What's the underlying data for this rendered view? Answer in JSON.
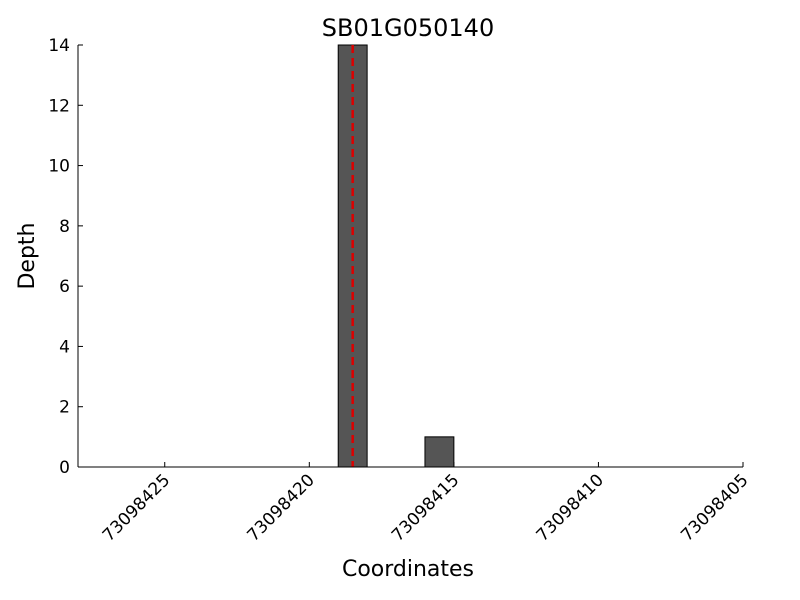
{
  "chart_data": {
    "type": "bar",
    "title": "SB01G050140",
    "xlabel": "Coordinates",
    "ylabel": "Depth",
    "x": [
      73098418.5,
      73098415.5
    ],
    "values": [
      14,
      1
    ],
    "bar_width": 1,
    "color": "#555555",
    "xlim": [
      73098428,
      73098405
    ],
    "xticks": [
      73098425,
      73098420,
      73098415,
      73098410,
      73098405
    ],
    "ylim": [
      0,
      14
    ],
    "yticks": [
      0,
      2,
      4,
      6,
      8,
      10,
      12,
      14
    ],
    "vline": {
      "x": 73098418.5,
      "color": "#dd0000",
      "style": "dashed"
    },
    "grid": false
  }
}
